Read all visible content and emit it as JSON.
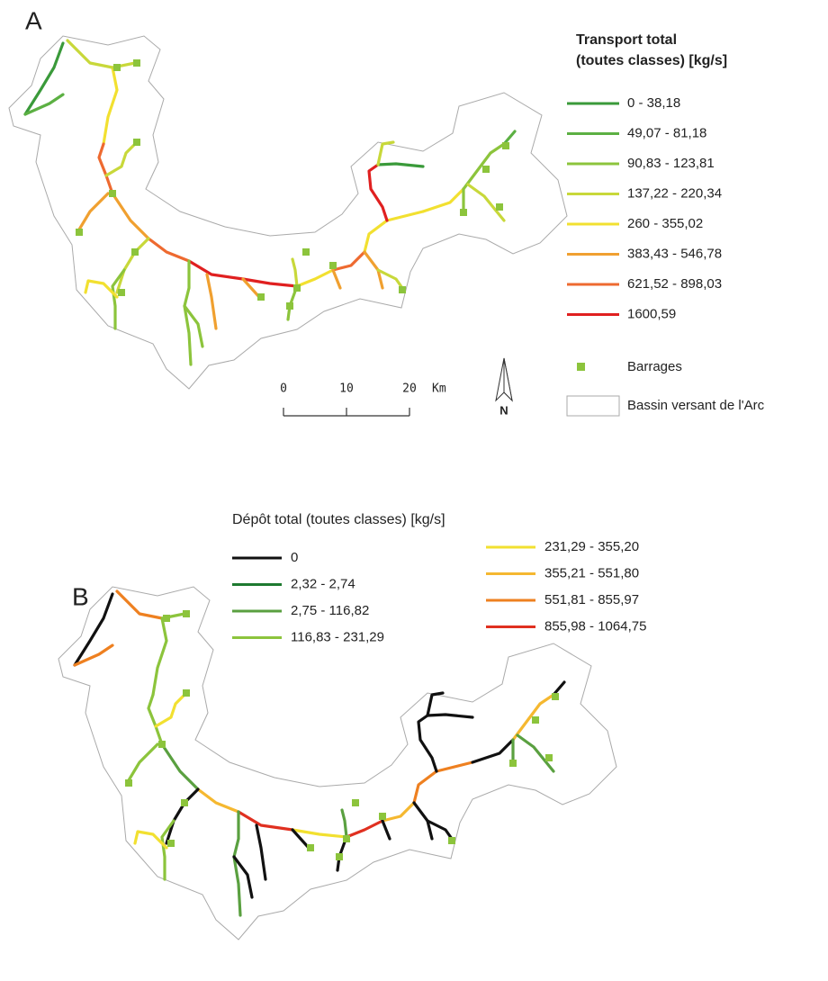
{
  "panels": [
    {
      "label": "A",
      "legend": {
        "title": [
          "Transport total",
          "(toutes classes) [kg/s]"
        ],
        "entries": [
          {
            "label": "0 - 38,18",
            "color": "#3a9a3a"
          },
          {
            "label": "49,07 - 81,18",
            "color": "#5cb043"
          },
          {
            "label": "90,83 - 123,81",
            "color": "#8cc43c"
          },
          {
            "label": "137,22 - 220,34",
            "color": "#c8d83a"
          },
          {
            "label": "260 - 355,02",
            "color": "#f2e030"
          },
          {
            "label": "383,43 - 546,78",
            "color": "#f0a030"
          },
          {
            "label": "621,52 - 898,03",
            "color": "#ee6a30"
          },
          {
            "label": "1600,59",
            "color": "#e02020"
          }
        ]
      },
      "barrages": {
        "label": "Barrages",
        "color": "#8cc43c"
      },
      "basin": "Bassin versant de l'Arc",
      "scale": {
        "ticks": [
          0,
          10,
          20
        ],
        "unit": "Km"
      },
      "north": "N"
    },
    {
      "label": "B",
      "legend": {
        "title": "Dépôt total (toutes classes) [kg/s]",
        "entries": [
          {
            "label": "0",
            "color": "#111111"
          },
          {
            "label": "2,32 - 2,74",
            "color": "#1e7a30"
          },
          {
            "label": "2,75 - 116,82",
            "color": "#5aa040"
          },
          {
            "label": "116,83 - 231,29",
            "color": "#8cc43c"
          },
          {
            "label": "231,29 - 355,20",
            "color": "#f2e030"
          },
          {
            "label": "355,21 - 551,80",
            "color": "#f5b830"
          },
          {
            "label": "551,81 - 855,97",
            "color": "#ee8020"
          },
          {
            "label": "855,98 - 1064,75",
            "color": "#e03020"
          }
        ]
      }
    }
  ]
}
